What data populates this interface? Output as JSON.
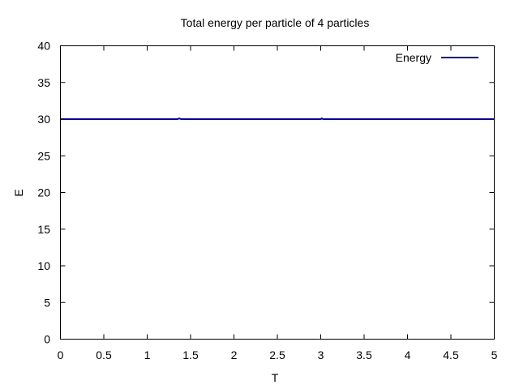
{
  "chart_data": {
    "type": "line",
    "title": "Total energy per particle of 4 particles",
    "xlabel": "T",
    "ylabel": "E",
    "xlim": [
      0,
      5
    ],
    "ylim": [
      0,
      40
    ],
    "x_ticks": [
      0,
      0.5,
      1,
      1.5,
      2,
      2.5,
      3,
      3.5,
      4,
      4.5,
      5
    ],
    "y_ticks": [
      0,
      5,
      10,
      15,
      20,
      25,
      30,
      35,
      40
    ],
    "x_tick_labels": [
      "0",
      "0.5",
      "1",
      "1.5",
      "2",
      "2.5",
      "3",
      "3.5",
      "4",
      "4.5",
      "5"
    ],
    "y_tick_labels": [
      "0",
      "5",
      "10",
      "15",
      "20",
      "25",
      "30",
      "35",
      "40"
    ],
    "grid": false,
    "legend_position": "top-right",
    "series": [
      {
        "name": "Energy",
        "color": "#0000a0",
        "x": [
          0,
          0.5,
          1,
          1.35,
          1.37,
          1.39,
          1.5,
          2,
          2.5,
          3,
          3.01,
          3.03,
          3.5,
          4,
          4.5,
          5
        ],
        "y": [
          30,
          30,
          30,
          30,
          30.1,
          30,
          30,
          30,
          30,
          30,
          30.1,
          30,
          30,
          30,
          30,
          30
        ]
      }
    ]
  }
}
